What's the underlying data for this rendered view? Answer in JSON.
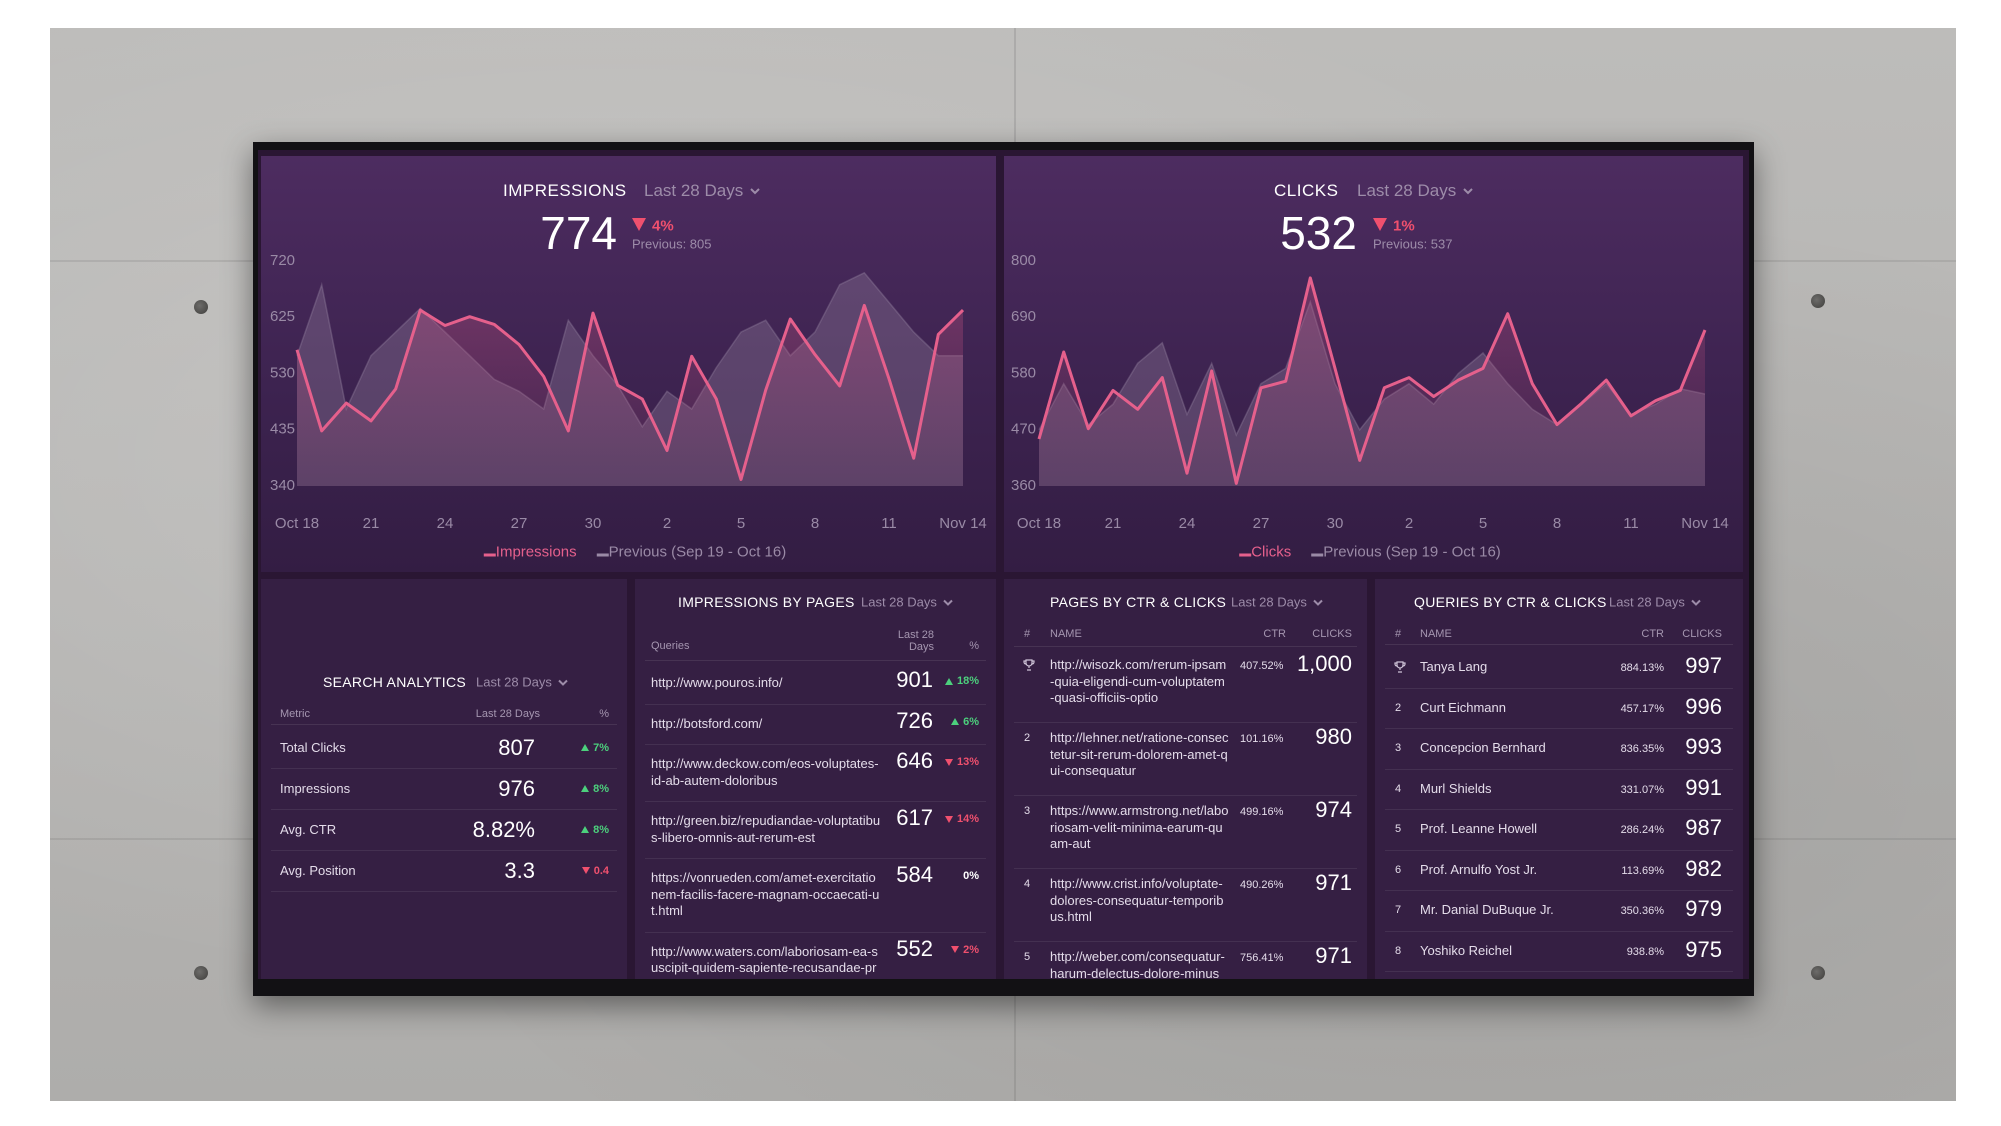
{
  "chart_data": [
    {
      "type": "line",
      "title": "IMPRESSIONS",
      "period": "Last 28 Days",
      "kpi": "774",
      "change": "4%",
      "trend": "down",
      "previous": "Previous: 805",
      "categories": [
        "Oct 18",
        null,
        null,
        "21",
        null,
        null,
        "24",
        null,
        null,
        "27",
        null,
        null,
        "30",
        null,
        null,
        "2",
        null,
        null,
        "5",
        null,
        null,
        "8",
        null,
        null,
        "11",
        null,
        null,
        "Nov 14"
      ],
      "series": [
        {
          "name": "Impressions",
          "color": "#e5608c",
          "style": "line",
          "values": [
            570,
            433,
            480,
            450,
            504,
            637,
            611,
            626,
            613,
            579,
            525,
            433,
            632,
            510,
            487,
            400,
            559,
            487,
            351,
            502,
            622,
            562,
            509,
            645,
            521,
            387,
            596,
            637
          ]
        },
        {
          "name": "Previous (Sep 19 - Oct 16)",
          "color": "#9a8aa6",
          "style": "area",
          "values": [
            560,
            680,
            470,
            560,
            600,
            640,
            600,
            560,
            520,
            500,
            470,
            620,
            560,
            510,
            440,
            500,
            470,
            540,
            600,
            620,
            560,
            600,
            680,
            700,
            650,
            600,
            560,
            560
          ]
        }
      ],
      "ylim": [
        340,
        720
      ],
      "yticks": [
        340,
        435,
        530,
        625,
        720
      ],
      "grid": false
    },
    {
      "type": "line",
      "title": "CLICKS",
      "period": "Last 28 Days",
      "kpi": "532",
      "change": "1%",
      "trend": "down",
      "previous": "Previous: 537",
      "categories": [
        "Oct 18",
        null,
        null,
        "21",
        null,
        null,
        "24",
        null,
        null,
        "27",
        null,
        null,
        "30",
        null,
        null,
        "2",
        null,
        null,
        "5",
        null,
        null,
        "8",
        null,
        null,
        "11",
        null,
        null,
        "Nov 14"
      ],
      "series": [
        {
          "name": "Clicks",
          "color": "#e5608c",
          "style": "line",
          "values": [
            452,
            622,
            472,
            547,
            510,
            572,
            385,
            585,
            365,
            552,
            565,
            767,
            590,
            410,
            552,
            572,
            535,
            567,
            590,
            697,
            560,
            480,
            522,
            567,
            497,
            527,
            547,
            665
          ]
        },
        {
          "name": "Previous (Sep 19 - Oct 16)",
          "color": "#9a8aa6",
          "style": "area",
          "values": [
            470,
            560,
            480,
            520,
            600,
            640,
            500,
            600,
            460,
            560,
            590,
            720,
            560,
            470,
            530,
            560,
            520,
            580,
            620,
            560,
            510,
            480,
            520,
            560,
            500,
            520,
            550,
            540
          ]
        }
      ],
      "ylim": [
        360,
        800
      ],
      "yticks": [
        360,
        470,
        580,
        690,
        800
      ],
      "grid": false
    }
  ],
  "tables": [
    {
      "title": "SEARCH ANALYTICS",
      "period": "Last 28 Days",
      "columns": [
        "Metric",
        "Last 28 Days",
        "%"
      ],
      "rows": [
        {
          "name": "Total Clicks",
          "value": "807",
          "change": "7%",
          "trend": "up"
        },
        {
          "name": "Impressions",
          "value": "976",
          "change": "8%",
          "trend": "up"
        },
        {
          "name": "Avg. CTR",
          "value": "8.82%",
          "change": "8%",
          "trend": "up"
        },
        {
          "name": "Avg. Position",
          "value": "3.3",
          "change": "0.4",
          "trend": "down"
        }
      ]
    },
    {
      "title": "IMPRESSIONS BY PAGES",
      "period": "Last 28 Days",
      "columns": [
        "Queries",
        "Last 28 Days",
        "%"
      ],
      "rows": [
        {
          "name": "http://www.pouros.info/",
          "value": "901",
          "change": "18%",
          "trend": "up"
        },
        {
          "name": "http://botsford.com/",
          "value": "726",
          "change": "6%",
          "trend": "up"
        },
        {
          "name": "http://www.deckow.com/eos-voluptates-id-ab-autem-doloribus",
          "value": "646",
          "change": "13%",
          "trend": "down"
        },
        {
          "name": "http://green.biz/repudiandae-voluptatibus-libero-omnis-aut-rerum-est",
          "value": "617",
          "change": "14%",
          "trend": "down"
        },
        {
          "name": "https://vonrueden.com/amet-exercitationem-facilis-facere-magnam-occaecati-ut.html",
          "value": "584",
          "change": "0%"
        },
        {
          "name": "http://www.waters.com/laboriosam-ea-suscipit-quidem-sapiente-recusandae-provident.html",
          "value": "552",
          "change": "2%",
          "trend": "down"
        }
      ]
    },
    {
      "title": "PAGES BY CTR & CLICKS",
      "period": "Last 28 Days",
      "columns": [
        "#",
        "NAME",
        "CTR",
        "CLICKS"
      ],
      "rows": [
        {
          "icon": "trophy",
          "name": "http://wisozk.com/rerum-ipsam-quia-eligendi-cum-voluptatem-quasi-officiis-optio",
          "ctr": "407.52%",
          "clicks": "1,000"
        },
        {
          "rank": "2",
          "name": "http://lehner.net/ratione-consectetur-sit-rerum-dolorem-amet-qui-consequatur",
          "ctr": "101.16%",
          "clicks": "980"
        },
        {
          "rank": "3",
          "name": "https://www.armstrong.net/laboriosam-velit-minima-earum-quam-aut",
          "ctr": "499.16%",
          "clicks": "974"
        },
        {
          "rank": "4",
          "name": "http://www.crist.info/voluptate-dolores-consequatur-temporibus.html",
          "ctr": "490.26%",
          "clicks": "971"
        },
        {
          "rank": "5",
          "name": "http://weber.com/consequatur-harum-delectus-dolore-minus",
          "ctr": "756.41%",
          "clicks": "971"
        }
      ]
    },
    {
      "title": "QUERIES BY CTR & CLICKS",
      "period": "Last 28 Days",
      "columns": [
        "#",
        "NAME",
        "CTR",
        "CLICKS"
      ],
      "rows": [
        {
          "icon": "trophy",
          "name": "Tanya Lang",
          "ctr": "884.13%",
          "clicks": "997"
        },
        {
          "rank": "2",
          "name": "Curt Eichmann",
          "ctr": "457.17%",
          "clicks": "996"
        },
        {
          "rank": "3",
          "name": "Concepcion Bernhard",
          "ctr": "836.35%",
          "clicks": "993"
        },
        {
          "rank": "4",
          "name": "Murl Shields",
          "ctr": "331.07%",
          "clicks": "991"
        },
        {
          "rank": "5",
          "name": "Prof. Leanne Howell",
          "ctr": "286.24%",
          "clicks": "987"
        },
        {
          "rank": "6",
          "name": "Prof. Arnulfo Yost Jr.",
          "ctr": "113.69%",
          "clicks": "982"
        },
        {
          "rank": "7",
          "name": "Mr. Danial DuBuque Jr.",
          "ctr": "350.36%",
          "clicks": "979"
        },
        {
          "rank": "8",
          "name": "Yoshiko Reichel",
          "ctr": "938.8%",
          "clicks": "975"
        }
      ]
    }
  ]
}
